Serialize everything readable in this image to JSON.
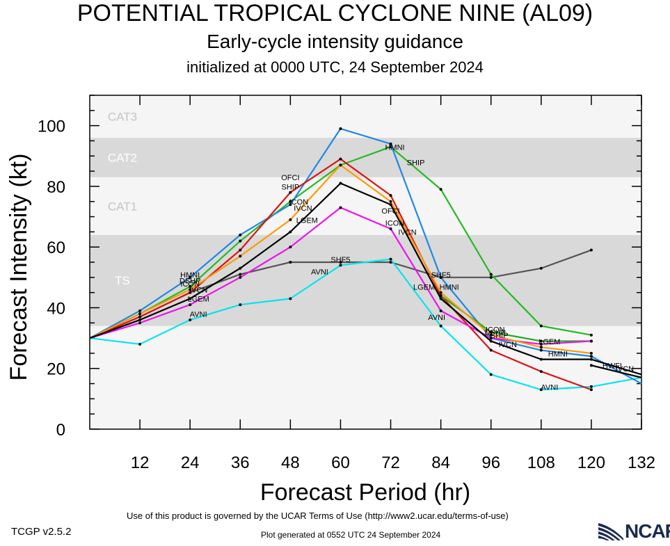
{
  "header": {
    "title": "POTENTIAL TROPICAL CYCLONE NINE (AL09)",
    "subtitle": "Early-cycle intensity guidance",
    "init_line": "initialized at 0000 UTC, 24 September 2024"
  },
  "footer": {
    "terms": "Use of this product is governed by the UCAR Terms of Use (http://www2.ucar.edu/terms-of-use)",
    "version": "TCGP v2.5.2",
    "generated": "Plot generated at 0552 UTC   24 September 2024",
    "logo_text": "NCAR"
  },
  "chart_data": {
    "type": "line",
    "xlabel": "Forecast Period (hr)",
    "ylabel": "Forecast Intensity (kt)",
    "xlim": [
      0,
      132
    ],
    "ylim": [
      0,
      110
    ],
    "xticks": [
      12,
      24,
      36,
      48,
      60,
      72,
      84,
      96,
      108,
      120,
      132
    ],
    "yticks": [
      0,
      20,
      40,
      60,
      80,
      100
    ],
    "bands": [
      {
        "label": "TS",
        "from": 34,
        "to": 64,
        "color": "#d9d9d9"
      },
      {
        "label": "CAT1",
        "from": 64,
        "to": 83,
        "color": "#f5f5f5"
      },
      {
        "label": "CAT2",
        "from": 83,
        "to": 96,
        "color": "#d9d9d9"
      },
      {
        "label": "CAT3",
        "from": 96,
        "to": 110,
        "color": "#f5f5f5"
      }
    ],
    "below_band_color": "#f5f5f5",
    "series": [
      {
        "name": "SHF5",
        "color": "#555555",
        "x": [
          0,
          12,
          24,
          36,
          48,
          60,
          72,
          84,
          96,
          108,
          120
        ],
        "y": [
          30,
          37,
          45,
          51,
          55,
          55,
          55,
          50,
          50,
          53,
          59
        ],
        "labels": [
          {
            "x": 60,
            "y": 55
          },
          {
            "x": 84,
            "y": 50
          }
        ]
      },
      {
        "name": "SHIP",
        "color": "#22bb22",
        "x": [
          0,
          12,
          24,
          36,
          48,
          60,
          72,
          84,
          96,
          108,
          120
        ],
        "y": [
          30,
          38,
          47,
          62,
          75,
          87,
          93,
          79,
          51,
          34,
          31
        ],
        "labels": [
          {
            "x": 48,
            "y": 79
          },
          {
            "x": 78,
            "y": 87
          },
          {
            "x": 98,
            "y": 30
          }
        ]
      },
      {
        "name": "AVNI",
        "color": "#00e5ee",
        "x": [
          0,
          12,
          24,
          36,
          48,
          60,
          72,
          84,
          96,
          108,
          120,
          132
        ],
        "y": [
          30,
          28,
          36,
          41,
          43,
          54,
          56,
          34,
          18,
          13,
          14,
          17
        ],
        "labels": [
          {
            "x": 26,
            "y": 37
          },
          {
            "x": 55,
            "y": 51
          },
          {
            "x": 83,
            "y": 36
          },
          {
            "x": 110,
            "y": 13
          }
        ]
      },
      {
        "name": "HMNI",
        "color": "#1e88e5",
        "x": [
          0,
          12,
          24,
          36,
          48,
          60,
          72,
          84,
          96,
          108,
          120,
          132
        ],
        "y": [
          30,
          39,
          50,
          64,
          74,
          99,
          94,
          50,
          30,
          26,
          24,
          15
        ],
        "labels": [
          {
            "x": 24,
            "y": 50
          },
          {
            "x": 73,
            "y": 92
          },
          {
            "x": 86,
            "y": 46
          },
          {
            "x": 112,
            "y": 24
          }
        ]
      },
      {
        "name": "HWFI",
        "color": "#000000",
        "x": [
          120,
          132
        ],
        "y": [
          21,
          17
        ],
        "labels": [
          {
            "x": 125,
            "y": 20
          }
        ]
      },
      {
        "name": "OFCI",
        "color": "#dd1111",
        "x": [
          0,
          12,
          24,
          36,
          48,
          60,
          72,
          84,
          96,
          108,
          120
        ],
        "y": [
          30,
          37,
          45,
          59,
          78,
          89,
          77,
          44,
          26,
          19,
          13
        ],
        "labels": [
          {
            "x": 48,
            "y": 82
          },
          {
            "x": 72,
            "y": 71
          }
        ]
      },
      {
        "name": "DSHP",
        "color": "#22aa22",
        "x": [
          84,
          96,
          108,
          120
        ],
        "y": [
          44,
          32,
          29,
          29
        ],
        "labels": [
          {
            "x": 24,
            "y": 48
          },
          {
            "x": 97,
            "y": 31
          }
        ]
      },
      {
        "name": "LGEM",
        "color": "#ee11ee",
        "x": [
          0,
          12,
          24,
          36,
          48,
          60,
          72,
          84,
          96,
          108,
          120
        ],
        "y": [
          30,
          35,
          41,
          50,
          60,
          73,
          66,
          39,
          30,
          28,
          29
        ],
        "labels": [
          {
            "x": 26,
            "y": 42
          },
          {
            "x": 52,
            "y": 68
          },
          {
            "x": 80,
            "y": 46
          },
          {
            "x": 110,
            "y": 28
          }
        ]
      },
      {
        "name": "ICON",
        "color": "#ff9900",
        "x": [
          0,
          12,
          24,
          36,
          48,
          60,
          72,
          84,
          96,
          108,
          120
        ],
        "y": [
          30,
          38,
          46,
          57,
          69,
          87,
          75,
          45,
          31,
          27,
          25
        ],
        "labels": [
          {
            "x": 24,
            "y": 47
          },
          {
            "x": 50,
            "y": 74
          },
          {
            "x": 73,
            "y": 67
          },
          {
            "x": 97,
            "y": 32
          }
        ]
      },
      {
        "name": "IVCN",
        "color": "#000000",
        "x": [
          0,
          12,
          24,
          36,
          48,
          60,
          72,
          84,
          96,
          108,
          120,
          132
        ],
        "y": [
          30,
          36,
          43,
          53,
          65,
          81,
          74,
          43,
          29,
          23,
          23,
          18
        ],
        "labels": [
          {
            "x": 26,
            "y": 45
          },
          {
            "x": 51,
            "y": 72
          },
          {
            "x": 76,
            "y": 64
          },
          {
            "x": 100,
            "y": 27
          },
          {
            "x": 128,
            "y": 19
          }
        ]
      }
    ]
  }
}
